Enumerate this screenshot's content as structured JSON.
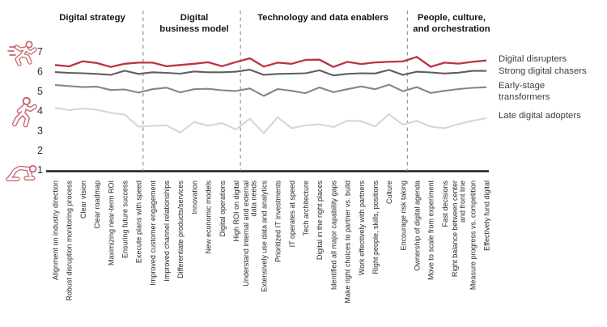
{
  "chart_data": {
    "type": "line",
    "title": "",
    "ylim": [
      1,
      7
    ],
    "yticks": [
      1,
      2,
      3,
      4,
      5,
      6,
      7
    ],
    "grid": false,
    "legend_position": "right",
    "groups": [
      {
        "label_lines": [
          "Digital strategy"
        ],
        "from": 0,
        "to": 6
      },
      {
        "label_lines": [
          "Digital",
          "business model"
        ],
        "from": 7,
        "to": 13
      },
      {
        "label_lines": [
          "Technology and data enablers"
        ],
        "from": 14,
        "to": 25
      },
      {
        "label_lines": [
          "People, culture,",
          "and orchestration"
        ],
        "from": 26,
        "to": 31
      }
    ],
    "categories": [
      [
        "Alignment on industry direction"
      ],
      [
        "Robust disruption monitoring process"
      ],
      [
        "Clear vision"
      ],
      [
        "Clear roadmap"
      ],
      [
        "Maximizing near-term ROI"
      ],
      [
        "Ensuring future success"
      ],
      [
        "Execute plans with speed"
      ],
      [
        "Improved customer engagement"
      ],
      [
        "Improved channel relationships"
      ],
      [
        "Differentiate products/services"
      ],
      [
        "Innovation"
      ],
      [
        "New economic models"
      ],
      [
        "Digital operations"
      ],
      [
        "High ROI on digital"
      ],
      [
        "Understand internal and external",
        "data needs"
      ],
      [
        "Extensively use data and analytics"
      ],
      [
        "Prioritized IT investments"
      ],
      [
        "IT operates at speed"
      ],
      [
        "Tech architecture"
      ],
      [
        "Digital in the right places"
      ],
      [
        "Identified all major capability gaps"
      ],
      [
        "Make right choices to partner vs. build"
      ],
      [
        "Work effectively with partners"
      ],
      [
        "Right people, skills, positions"
      ],
      [
        "Culture"
      ],
      [
        "Encourage risk taking"
      ],
      [
        "Ownership of digital agenda"
      ],
      [
        "Move to scale from experiment"
      ],
      [
        "Fast decisions"
      ],
      [
        "Right balance between center",
        "and front line"
      ],
      [
        "Measure progress vs. competition"
      ],
      [
        "Effectively fund digital"
      ]
    ],
    "series": [
      {
        "name": "Digital disrupters",
        "legend_lines": [
          "Digital disrupters"
        ],
        "color": "#bb3440",
        "width": 2.3,
        "values": [
          6.33,
          6.26,
          6.52,
          6.43,
          6.23,
          6.39,
          6.45,
          6.45,
          6.27,
          6.33,
          6.39,
          6.47,
          6.27,
          6.48,
          6.67,
          6.25,
          6.45,
          6.39,
          6.59,
          6.6,
          6.23,
          6.49,
          6.38,
          6.46,
          6.49,
          6.51,
          6.74,
          6.24,
          6.45,
          6.4,
          6.49,
          6.56
        ]
      },
      {
        "name": "Strong digital chasers",
        "legend_lines": [
          "Strong digital chasers"
        ],
        "color": "#5e5e5e",
        "width": 2.1,
        "values": [
          5.97,
          5.93,
          5.91,
          5.88,
          5.83,
          6.04,
          5.88,
          5.96,
          5.93,
          5.89,
          6.0,
          5.96,
          5.96,
          5.99,
          6.09,
          5.83,
          5.88,
          5.89,
          5.91,
          6.06,
          5.8,
          5.88,
          5.91,
          5.9,
          6.08,
          5.83,
          5.99,
          5.95,
          5.9,
          5.94,
          6.03,
          6.03
        ]
      },
      {
        "name": "Early-stage transformers",
        "legend_lines": [
          "Early-stage",
          "transformers"
        ],
        "color": "#868686",
        "width": 2.1,
        "values": [
          5.31,
          5.26,
          5.21,
          5.23,
          5.06,
          5.09,
          4.93,
          5.1,
          5.18,
          4.94,
          5.1,
          5.12,
          5.05,
          5.01,
          5.14,
          4.76,
          5.11,
          5.02,
          4.9,
          5.19,
          4.95,
          5.1,
          5.24,
          5.1,
          5.33,
          5.0,
          5.21,
          4.91,
          5.02,
          5.11,
          5.17,
          5.2
        ]
      },
      {
        "name": "Late digital adopters",
        "legend_lines": [
          "Late digital adopters"
        ],
        "color": "#d6d6d6",
        "width": 2.1,
        "values": [
          4.16,
          4.04,
          4.12,
          4.06,
          3.9,
          3.82,
          3.2,
          3.24,
          3.27,
          2.9,
          3.44,
          3.25,
          3.38,
          3.06,
          3.6,
          2.87,
          3.68,
          3.12,
          3.26,
          3.32,
          3.18,
          3.5,
          3.48,
          3.21,
          3.83,
          3.3,
          3.5,
          3.2,
          3.12,
          3.33,
          3.5,
          3.63
        ]
      }
    ],
    "icons": [
      {
        "name": "sprinting-person-icon",
        "meaning": "fastest pace",
        "at_value": 6.7
      },
      {
        "name": "running-person-icon",
        "meaning": "medium pace",
        "at_value": 4.0
      },
      {
        "name": "crawling-person-icon",
        "meaning": "slowest pace",
        "at_value": 1.0
      }
    ],
    "colors": {
      "axis": "#1c1c1c",
      "tick_text": "#2e2e2e",
      "category_text": "#2a2a2a",
      "group_header_text": "#141414",
      "legend_text": "#3d3d3d",
      "divider": "#9a9a9a",
      "icon": "#c9646d"
    }
  }
}
